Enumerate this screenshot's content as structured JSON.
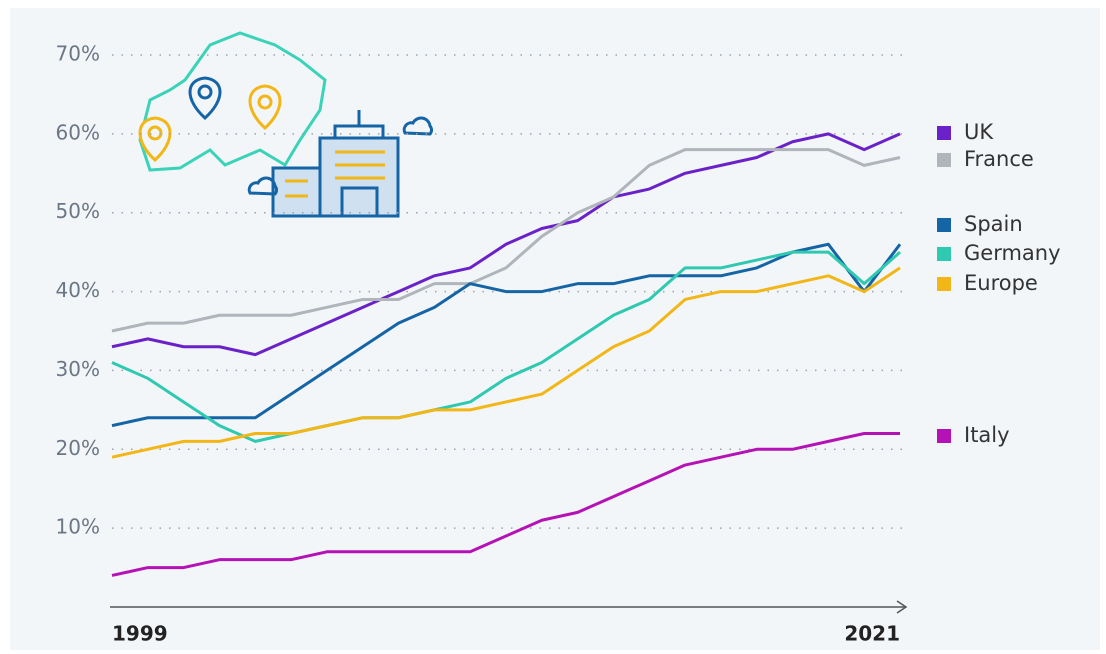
{
  "chart_data": {
    "type": "line",
    "x": [
      1999,
      2000,
      2001,
      2002,
      2003,
      2004,
      2005,
      2006,
      2007,
      2008,
      2009,
      2010,
      2011,
      2012,
      2013,
      2014,
      2015,
      2016,
      2017,
      2018,
      2019,
      2020,
      2021
    ],
    "series": [
      {
        "name": "UK",
        "color": "#6a22c8",
        "values": [
          33,
          34,
          33,
          33,
          32,
          34,
          36,
          38,
          40,
          42,
          43,
          46,
          48,
          49,
          52,
          53,
          55,
          56,
          57,
          59,
          60,
          58,
          60
        ]
      },
      {
        "name": "France",
        "color": "#b0b4bb",
        "values": [
          35,
          36,
          36,
          37,
          37,
          37,
          38,
          39,
          39,
          41,
          41,
          43,
          47,
          50,
          52,
          56,
          58,
          58,
          58,
          58,
          58,
          56,
          57
        ]
      },
      {
        "name": "Spain",
        "color": "#1565a6",
        "values": [
          23,
          24,
          24,
          24,
          24,
          27,
          30,
          33,
          36,
          38,
          41,
          40,
          40,
          41,
          41,
          42,
          42,
          42,
          43,
          45,
          46,
          40,
          46
        ]
      },
      {
        "name": "Germany",
        "color": "#2ec9b0",
        "values": [
          31,
          29,
          26,
          23,
          21,
          22,
          23,
          24,
          24,
          25,
          26,
          29,
          31,
          34,
          37,
          39,
          43,
          43,
          44,
          45,
          45,
          41,
          45
        ]
      },
      {
        "name": "Europe",
        "color": "#f2b617",
        "values": [
          19,
          20,
          21,
          21,
          22,
          22,
          23,
          24,
          24,
          25,
          25,
          26,
          27,
          30,
          33,
          35,
          39,
          40,
          40,
          41,
          42,
          40,
          43
        ]
      },
      {
        "name": "Italy",
        "color": "#b512b5",
        "values": [
          4,
          5,
          5,
          6,
          6,
          6,
          7,
          7,
          7,
          7,
          7,
          9,
          11,
          12,
          14,
          16,
          18,
          19,
          20,
          20,
          21,
          22,
          22
        ]
      }
    ],
    "xlim": [
      1999,
      2021
    ],
    "xticks": [
      1999,
      2021
    ],
    "ylim": [
      0,
      70
    ],
    "yticks": [
      {
        "value": 10,
        "label": "10%"
      },
      {
        "value": 20,
        "label": "20%"
      },
      {
        "value": 30,
        "label": "30%"
      },
      {
        "value": 40,
        "label": "40%"
      },
      {
        "value": 50,
        "label": "50%"
      },
      {
        "value": 60,
        "label": "60%"
      },
      {
        "value": 70,
        "label": "70%"
      }
    ],
    "grid": true
  }
}
